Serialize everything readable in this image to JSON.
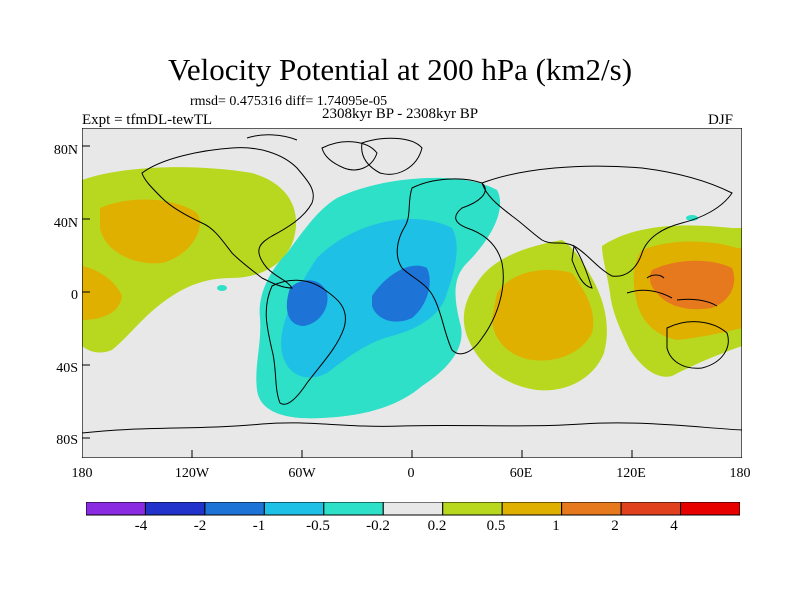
{
  "title": "Velocity Potential at 200 hPa (km2/s)",
  "stats": "rmsd= 0.475316 diff= 1.74095e-05",
  "expt": "Expt = tfmDL-tewTL",
  "period": "2308kyr BP - 2308kyr BP",
  "season": "DJF",
  "axes": {
    "y_ticks": [
      "80N",
      "40N",
      "0",
      "40S",
      "80S"
    ],
    "x_ticks": [
      "180",
      "120W",
      "60W",
      "0",
      "60E",
      "120E",
      "180"
    ]
  },
  "colorbar": {
    "labels": [
      "-4",
      "-2",
      "-1",
      "-0.5",
      "-0.2",
      "0.2",
      "0.5",
      "1",
      "2",
      "4"
    ],
    "colors": [
      "#8a2be2",
      "#2233cc",
      "#1e73d6",
      "#1ec0e6",
      "#2ee0c8",
      "#e8e8e8",
      "#b8d820",
      "#e0b000",
      "#e6781e",
      "#e0401e",
      "#e60000"
    ]
  },
  "map_colors": {
    "ocean_land_background": "#e8e8e8",
    "coastline": "#000000"
  }
}
